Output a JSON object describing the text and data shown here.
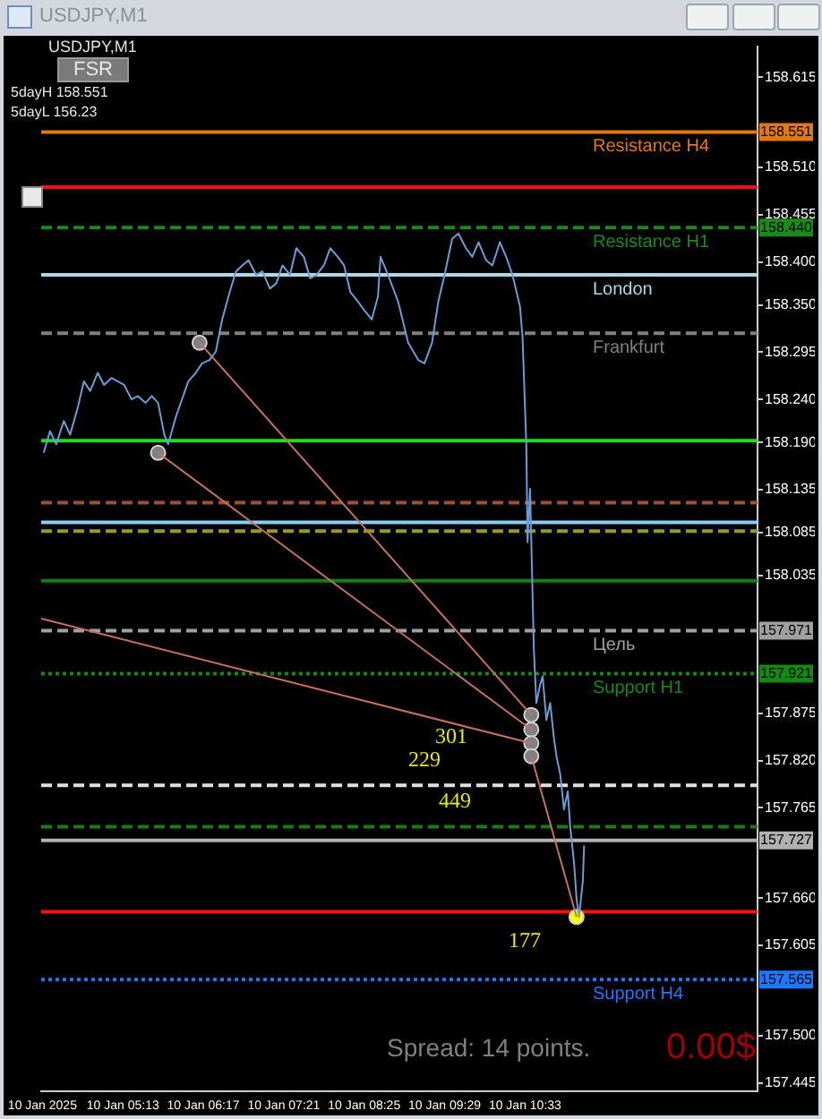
{
  "chart_data": {
    "type": "line",
    "title": "USDJPY,M1",
    "xlim": [
      "2025-01-10T04:08",
      "2025-01-10T13:38"
    ],
    "xticks": [
      {
        "value": "2025-01-10T04:09",
        "label": "10 Jan 2025"
      },
      {
        "value": "2025-01-10T05:13",
        "label": "10 Jan 05:13"
      },
      {
        "value": "2025-01-10T06:17",
        "label": "10 Jan 06:17"
      },
      {
        "value": "2025-01-10T07:21",
        "label": "10 Jan 07:21"
      },
      {
        "value": "2025-01-10T08:25",
        "label": "10 Jan 08:25"
      },
      {
        "value": "2025-01-10T09:29",
        "label": "10 Jan 09:29"
      },
      {
        "value": "2025-01-10T10:33",
        "label": "10 Jan 10:33"
      }
    ],
    "ylim": [
      157.435,
      158.651
    ],
    "yticks": [
      158.615,
      {
        "value": 158.51,
        "label": "158.510"
      },
      158.455,
      {
        "value": 158.4,
        "label": "158.400"
      },
      {
        "value": 158.35,
        "label": "158.350"
      },
      158.295,
      {
        "value": 158.24,
        "label": "158.240"
      },
      {
        "value": 158.19,
        "label": "158.190"
      },
      158.135,
      158.085,
      158.035,
      157.875,
      {
        "value": 157.82,
        "label": "157.820"
      },
      157.765,
      {
        "value": 157.66,
        "label": "157.660"
      },
      157.605,
      {
        "value": 157.5,
        "label": "157.500"
      },
      157.445
    ],
    "y2lim": [
      157.435,
      158.651
    ],
    "y2ticks": [
      158.551,
      {
        "value": 158.44,
        "label": "158.440"
      },
      157.971,
      157.921,
      157.727,
      157.565
    ],
    "grid": false,
    "legend": false,
    "series": [
      {
        "color": "#6d9bd3",
        "marker": "none",
        "line_style": "solid",
        "x": [
          "2025-01-10T04:10",
          "2025-01-10T04:15",
          "2025-01-10T04:20",
          "2025-01-10T04:26",
          "2025-01-10T04:31",
          "2025-01-10T04:37",
          "2025-01-10T04:42",
          "2025-01-10T04:47",
          "2025-01-10T04:53",
          "2025-01-10T04:58",
          "2025-01-10T05:04",
          "2025-01-10T05:09",
          "2025-01-10T05:14",
          "2025-01-10T05:20",
          "2025-01-10T05:25",
          "2025-01-10T05:31",
          "2025-01-10T05:36",
          "2025-01-10T05:41",
          "2025-01-10T05:46",
          "2025-01-10T05:49",
          "2025-01-10T05:55",
          "2025-01-10T06:00",
          "2025-01-10T06:05",
          "2025-01-10T06:11",
          "2025-01-10T06:16",
          "2025-01-10T06:22",
          "2025-01-10T06:27",
          "2025-01-10T06:32",
          "2025-01-10T06:38",
          "2025-01-10T06:43",
          "2025-01-10T06:48",
          "2025-01-10T06:53",
          "2025-01-10T06:59",
          "2025-01-10T07:04",
          "2025-01-10T07:10",
          "2025-01-10T07:15",
          "2025-01-10T07:20",
          "2025-01-10T07:26",
          "2025-01-10T07:31",
          "2025-01-10T07:37",
          "2025-01-10T07:42",
          "2025-01-10T07:47",
          "2025-01-10T07:53",
          "2025-01-10T07:58",
          "2025-01-10T08:04",
          "2025-01-10T08:09",
          "2025-01-10T08:14",
          "2025-01-10T08:20",
          "2025-01-10T08:25",
          "2025-01-10T08:31",
          "2025-01-10T08:36",
          "2025-01-10T08:38",
          "2025-01-10T08:44",
          "2025-01-10T08:52",
          "2025-01-10T09:00",
          "2025-01-10T09:08",
          "2025-01-10T09:13",
          "2025-01-10T09:19",
          "2025-01-10T09:24",
          "2025-01-10T09:29",
          "2025-01-10T09:35",
          "2025-01-10T09:40",
          "2025-01-10T09:46",
          "2025-01-10T09:51",
          "2025-01-10T09:56",
          "2025-01-10T10:02",
          "2025-01-10T10:07",
          "2025-01-10T10:13",
          "2025-01-10T10:18",
          "2025-01-10T10:23",
          "2025-01-10T10:29",
          "2025-01-10T10:31",
          "2025-01-10T10:34",
          "2025-01-10T10:35",
          "2025-01-10T10:37",
          "2025-01-10T10:40",
          "2025-01-10T10:42",
          "2025-01-10T10:45",
          "2025-01-10T10:47",
          "2025-01-10T10:50",
          "2025-01-10T10:53",
          "2025-01-10T10:56",
          "2025-01-10T10:58",
          "2025-01-10T11:01",
          "2025-01-10T11:04",
          "2025-01-10T11:07",
          "2025-01-10T11:09",
          "2025-01-10T11:12",
          "2025-01-10T11:14",
          "2025-01-10T11:16",
          "2025-01-10T11:19",
          "2025-01-10T11:20"
        ],
        "values": [
          158.178,
          158.203,
          158.188,
          158.215,
          158.199,
          158.23,
          158.261,
          158.25,
          158.271,
          158.257,
          158.265,
          158.261,
          158.257,
          158.24,
          158.244,
          158.236,
          158.244,
          158.236,
          158.199,
          158.188,
          158.219,
          158.24,
          158.261,
          158.271,
          158.282,
          158.286,
          158.296,
          158.333,
          158.365,
          158.389,
          158.396,
          158.402,
          158.385,
          158.389,
          158.369,
          158.375,
          158.396,
          158.385,
          158.416,
          158.406,
          158.381,
          158.385,
          158.396,
          158.416,
          158.406,
          158.396,
          158.365,
          158.354,
          158.344,
          158.333,
          158.36,
          158.406,
          158.385,
          158.354,
          158.306,
          158.286,
          158.282,
          158.306,
          158.354,
          158.385,
          158.427,
          158.433,
          158.416,
          158.406,
          158.423,
          158.402,
          158.396,
          158.423,
          158.406,
          158.385,
          158.348,
          158.313,
          158.188,
          158.074,
          158.136,
          157.95,
          157.887,
          157.908,
          157.918,
          157.867,
          157.887,
          157.846,
          157.825,
          157.804,
          157.763,
          157.784,
          157.742,
          157.701,
          157.659,
          157.638,
          157.68,
          157.721
        ]
      },
      {
        "color": "#c87060",
        "marker": "none",
        "line_style": "solid",
        "x": [
          "2025-01-10T06:14",
          "2025-01-10T10:38"
        ],
        "values": [
          158.306,
          157.873
        ]
      },
      {
        "color": "#c87060",
        "marker": "none",
        "line_style": "solid",
        "x": [
          "2025-01-10T05:41",
          "2025-01-10T10:38"
        ],
        "values": [
          158.178,
          157.856
        ]
      },
      {
        "color": "#c87060",
        "marker": "none",
        "line_style": "solid",
        "x": [
          "2025-01-10T04:08",
          "2025-01-10T10:38"
        ],
        "values": [
          157.985,
          157.84
        ]
      },
      {
        "color": "#c87060",
        "marker": "none",
        "line_style": "solid",
        "x": [
          "2025-01-10T10:38",
          "2025-01-10T11:14"
        ],
        "values": [
          157.825,
          157.638
        ]
      },
      {
        "type": "scatter",
        "color": "#808080",
        "marker": "circle",
        "x": [
          "2025-01-10T06:14",
          "2025-01-10T05:41",
          "2025-01-10T10:38",
          "2025-01-10T10:38",
          "2025-01-10T10:38",
          "2025-01-10T10:38"
        ],
        "values": [
          158.306,
          158.178,
          157.873,
          157.856,
          157.84,
          157.825
        ]
      },
      {
        "type": "scatter",
        "color": "#ffff00",
        "marker": "circle",
        "x": [
          "2025-01-10T11:14"
        ],
        "values": [
          157.638
        ]
      }
    ],
    "ref_lines": [
      {
        "axis": "y",
        "value": 158.551,
        "label": "Resistance H4",
        "color": "#e07a10",
        "line_style": "solid"
      },
      {
        "axis": "y",
        "value": 158.487,
        "color": "#ff1010",
        "line_style": "solid"
      },
      {
        "axis": "y",
        "value": 158.44,
        "label": "Resistance H1",
        "color": "#1a8a1a",
        "line_style": "dashed"
      },
      {
        "axis": "y",
        "value": 158.385,
        "label": "London",
        "color": "#add8e6",
        "line_style": "solid"
      },
      {
        "axis": "y",
        "value": 158.317,
        "label": "Frankfurt",
        "color": "#808080",
        "line_style": "dashed"
      },
      {
        "axis": "y",
        "value": 158.192,
        "color": "#22dd22",
        "line_style": "solid"
      },
      {
        "axis": "y",
        "value": 158.12,
        "color": "#a0522d",
        "line_style": "dashed"
      },
      {
        "axis": "y",
        "value": 158.097,
        "color": "#87cefa",
        "line_style": "solid"
      },
      {
        "axis": "y",
        "value": 158.087,
        "color": "#9a9a20",
        "line_style": "dashed"
      },
      {
        "axis": "y",
        "value": 158.029,
        "color": "#128012",
        "line_style": "solid"
      },
      {
        "axis": "y",
        "value": 157.971,
        "label": "Цель",
        "color": "#a0a0a0",
        "line_style": "dashed"
      },
      {
        "axis": "y",
        "value": 157.921,
        "label": "Support H1",
        "color": "#128a12",
        "line_style": "dotted"
      },
      {
        "axis": "y",
        "value": 157.791,
        "color": "#e0e0e0",
        "line_style": "dashed"
      },
      {
        "axis": "y",
        "value": 157.743,
        "color": "#1a7a1a",
        "line_style": "dashed"
      },
      {
        "axis": "y",
        "value": 157.727,
        "color": "#b0b0b0",
        "line_style": "solid"
      },
      {
        "axis": "y",
        "value": 157.644,
        "color": "#ff1010",
        "line_style": "solid"
      },
      {
        "axis": "y",
        "value": 157.565,
        "label": "Support H4",
        "color": "#1e78ff",
        "line_style": "dotted"
      }
    ],
    "annotations": [
      "FSR",
      "5dayH 158.551",
      "5dayL 156.23",
      "Spread: 14 points.",
      "0.00$",
      "301",
      "229",
      "449",
      "177"
    ]
  }
}
